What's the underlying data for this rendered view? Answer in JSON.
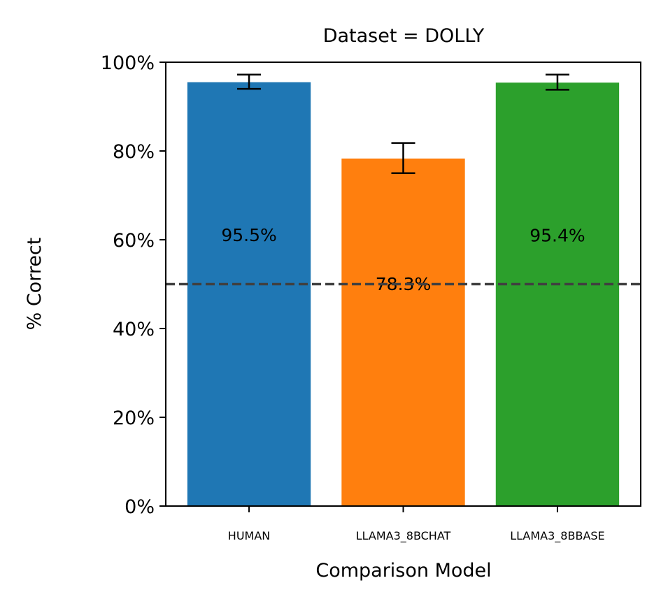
{
  "chart_data": {
    "type": "bar",
    "title": "Dataset = DOLLY",
    "xlabel": "Comparison Model",
    "ylabel": "% Correct",
    "categories": [
      "HUMAN",
      "LLAMA3_8BCHAT",
      "LLAMA3_8BBASE"
    ],
    "values": [
      95.5,
      78.3,
      95.4
    ],
    "value_labels": [
      "95.5%",
      "78.3%",
      "95.4%"
    ],
    "error_bars": [
      {
        "low": 94.0,
        "high": 97.2
      },
      {
        "low": 75.0,
        "high": 81.8
      },
      {
        "low": 93.8,
        "high": 97.2
      }
    ],
    "colors": [
      "#1f77b4",
      "#ff7f0e",
      "#2ca02c"
    ],
    "ylim": [
      0,
      100
    ],
    "yticks": [
      0,
      20,
      40,
      60,
      80,
      100
    ],
    "ytick_labels": [
      "0%",
      "20%",
      "40%",
      "60%",
      "80%",
      "100%"
    ],
    "reference_line": {
      "y": 50,
      "style": "dashed",
      "color": "#404040"
    },
    "grid": false,
    "legend": "none"
  }
}
